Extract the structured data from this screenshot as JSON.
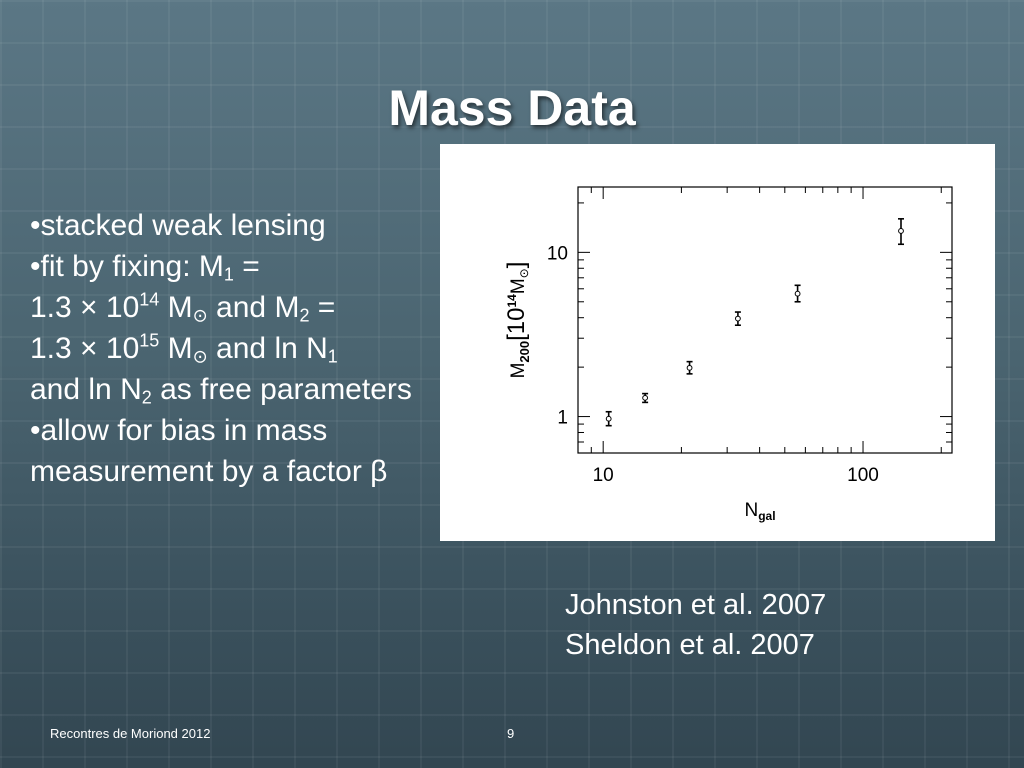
{
  "slide": {
    "title": "Mass Data",
    "bullets": {
      "b1": "•stacked weak lensing",
      "b2_pre": "•fit by fixing: M",
      "b2_sub1": "1",
      "b2_eq": " =",
      "b2_val1": "1.3 × 10",
      "b2_exp1": "14",
      "b2_m": " M",
      "sun": "⊙",
      "b2_and": "  and M",
      "b2_sub2": "2",
      "b2_val2": "1.3 × 10",
      "b2_exp2": "15",
      "b2_andln": " and ln N",
      "b2_sub3": "1",
      "b2_andln2": "and ln N",
      "b2_sub4": "2",
      "b2_end": " as free parameters",
      "b3": "•allow for bias in mass measurement by a factor β"
    },
    "refs": [
      "Johnston et al. 2007",
      "Sheldon et al. 2007"
    ],
    "footer": {
      "left": "Recontres de Moriond 2012",
      "page": "9"
    }
  },
  "chart_data": {
    "type": "scatter",
    "x_scale": "log",
    "y_scale": "log",
    "xlim": [
      8,
      220
    ],
    "ylim": [
      0.6,
      25
    ],
    "x_ticks": [
      10,
      100
    ],
    "x_tick_labels": [
      "10",
      "100"
    ],
    "y_ticks": [
      1,
      10
    ],
    "y_tick_labels": [
      "1",
      "10"
    ],
    "xlabel_main": "N",
    "xlabel_sub": "gal",
    "ylabel_main": "M",
    "ylabel_sub": "200",
    "ylabel_unit": "[10",
    "ylabel_exp": "14",
    "ylabel_unit_m": "M",
    "ylabel_sun": "⊙",
    "ylabel_close": "]",
    "points": [
      {
        "x": 10.5,
        "y": 0.97,
        "ylo": 0.88,
        "yhi": 1.07
      },
      {
        "x": 14.5,
        "y": 1.3,
        "ylo": 1.22,
        "yhi": 1.38
      },
      {
        "x": 21.5,
        "y": 1.98,
        "ylo": 1.82,
        "yhi": 2.16
      },
      {
        "x": 33,
        "y": 3.95,
        "ylo": 3.6,
        "yhi": 4.33
      },
      {
        "x": 56,
        "y": 5.6,
        "ylo": 5.0,
        "yhi": 6.3
      },
      {
        "x": 140,
        "y": 13.5,
        "ylo": 11.2,
        "yhi": 16.0
      }
    ],
    "grid": false,
    "legend": "none"
  }
}
